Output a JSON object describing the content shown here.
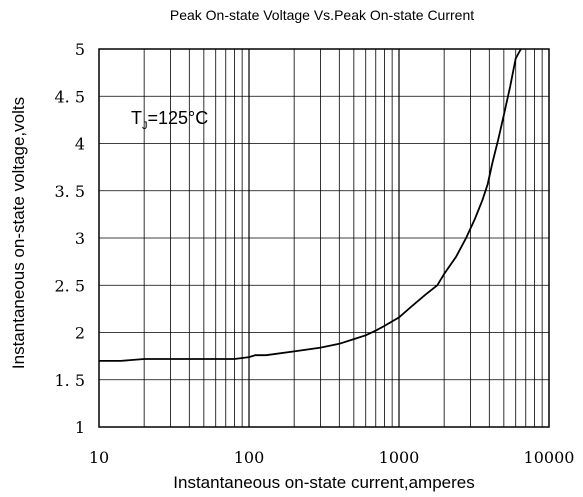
{
  "chart_data": {
    "type": "line",
    "title": "Peak On-state Voltage Vs.Peak On-state Current",
    "xlabel": "Instantaneous on-state current,amperes",
    "ylabel": "Instantaneous on-state voltage,volts",
    "x_scale": "log",
    "xlim": [
      10,
      10000
    ],
    "ylim": [
      1,
      5
    ],
    "x_ticks": [
      10,
      100,
      1000,
      10000
    ],
    "x_tick_labels": [
      "10",
      "100",
      "1000",
      "10000"
    ],
    "y_ticks": [
      1,
      1.5,
      2,
      2.5,
      3,
      3.5,
      4,
      4.5,
      5
    ],
    "y_tick_labels": [
      "1",
      "1. 5",
      "2",
      "2. 5",
      "3",
      "3. 5",
      "4",
      "4. 5",
      "5"
    ],
    "grid": true,
    "annotation": {
      "main": "T",
      "subscript": "J",
      "rest": "=125°C",
      "position": "top-left"
    },
    "series": [
      {
        "x": [
          10,
          14,
          20,
          30,
          50,
          80,
          100,
          110,
          130,
          200,
          300,
          400,
          500,
          600,
          700,
          800,
          1000,
          1200,
          1500,
          1800,
          2000,
          2400,
          2800,
          3200,
          3600,
          3900,
          4200,
          4600,
          5000,
          5500,
          6000,
          6500
        ],
        "y": [
          1.7,
          1.7,
          1.72,
          1.72,
          1.72,
          1.72,
          1.74,
          1.76,
          1.76,
          1.8,
          1.84,
          1.88,
          1.93,
          1.97,
          2.02,
          2.07,
          2.16,
          2.27,
          2.4,
          2.5,
          2.62,
          2.8,
          3.0,
          3.2,
          3.4,
          3.57,
          3.8,
          4.05,
          4.3,
          4.6,
          4.9,
          5.0
        ]
      }
    ]
  }
}
